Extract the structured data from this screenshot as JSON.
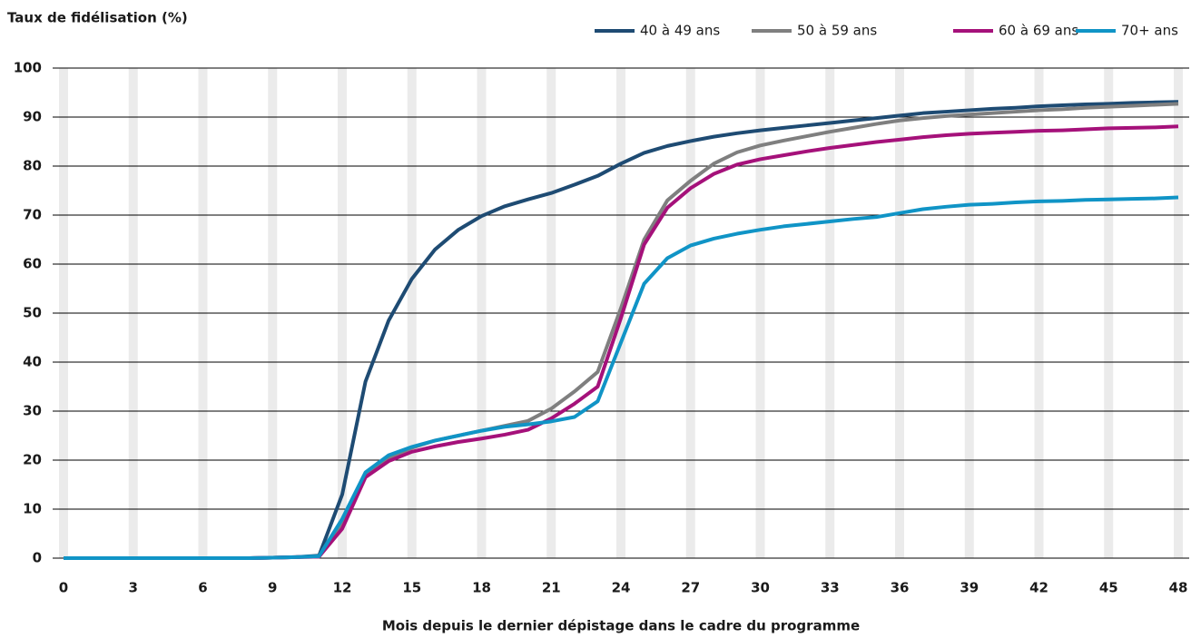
{
  "chart_data": {
    "type": "line",
    "title": "Taux de fidélisation (%)",
    "x_label": "Mois depuis le dernier dépistage dans le cadre du programme",
    "x": [
      0,
      1,
      2,
      3,
      4,
      5,
      6,
      7,
      8,
      9,
      10,
      11,
      12,
      13,
      14,
      15,
      16,
      17,
      18,
      19,
      20,
      21,
      22,
      23,
      24,
      25,
      26,
      27,
      28,
      29,
      30,
      31,
      32,
      33,
      34,
      35,
      36,
      37,
      38,
      39,
      40,
      41,
      42,
      43,
      44,
      45,
      46,
      47,
      48
    ],
    "series": [
      {
        "name": "40 à 49 ans",
        "color": "#1e4b73",
        "values": [
          0,
          0,
          0,
          0,
          0,
          0,
          0,
          0,
          0,
          0.1,
          0.2,
          0.5,
          13,
          36,
          48.5,
          57,
          63,
          67,
          69.8,
          71.8,
          73.2,
          74.5,
          76.2,
          78,
          80.5,
          82.7,
          84.1,
          85.1,
          86,
          86.7,
          87.3,
          87.8,
          88.3,
          88.8,
          89.3,
          89.8,
          90.3,
          90.8,
          91.1,
          91.4,
          91.7,
          91.9,
          92.2,
          92.4,
          92.6,
          92.7,
          92.9,
          93,
          93.1
        ]
      },
      {
        "name": "50 à 59 ans",
        "color": "#7f7f7f",
        "values": [
          0,
          0,
          0,
          0,
          0,
          0,
          0,
          0,
          0,
          0.1,
          0.2,
          0.3,
          7,
          17,
          20.5,
          22.5,
          24,
          25,
          26,
          27,
          28,
          30.5,
          34,
          38,
          51,
          65,
          73,
          77,
          80.5,
          82.8,
          84.2,
          85.2,
          86.1,
          87,
          87.8,
          88.6,
          89.3,
          89.8,
          90.2,
          90.5,
          90.8,
          91.1,
          91.4,
          91.6,
          91.9,
          92.1,
          92.3,
          92.5,
          92.7
        ]
      },
      {
        "name": "60 à 69 ans",
        "color": "#a5117a",
        "values": [
          0,
          0,
          0,
          0,
          0,
          0,
          0,
          0,
          0,
          0.1,
          0.2,
          0.3,
          6,
          16.5,
          19.8,
          21.7,
          22.8,
          23.7,
          24.4,
          25.2,
          26.2,
          28.5,
          31.5,
          35,
          49,
          64,
          71.5,
          75.5,
          78.4,
          80.3,
          81.4,
          82.2,
          83,
          83.7,
          84.3,
          84.9,
          85.4,
          85.9,
          86.3,
          86.6,
          86.8,
          87,
          87.2,
          87.3,
          87.5,
          87.7,
          87.8,
          87.9,
          88.1
        ]
      },
      {
        "name": "70+ ans",
        "color": "#1094c6",
        "values": [
          0,
          0,
          0,
          0,
          0,
          0,
          0,
          0,
          0,
          0.1,
          0.2,
          0.4,
          8,
          17.5,
          21,
          22.7,
          24,
          25,
          26,
          26.8,
          27.3,
          27.9,
          28.8,
          32,
          44,
          56,
          61.2,
          63.8,
          65.2,
          66.2,
          67,
          67.7,
          68.2,
          68.7,
          69.2,
          69.6,
          70.4,
          71.2,
          71.7,
          72.1,
          72.3,
          72.6,
          72.8,
          72.9,
          73.1,
          73.2,
          73.3,
          73.4,
          73.6
        ]
      }
    ],
    "xlim": [
      0,
      48
    ],
    "xticks": [
      0,
      3,
      6,
      9,
      12,
      15,
      18,
      21,
      24,
      27,
      30,
      33,
      36,
      39,
      42,
      45,
      48
    ],
    "ylim": [
      0,
      100
    ],
    "yticks": [
      0,
      10,
      20,
      30,
      40,
      50,
      60,
      70,
      80,
      90,
      100
    ],
    "grid": true,
    "legend": "top-right"
  }
}
